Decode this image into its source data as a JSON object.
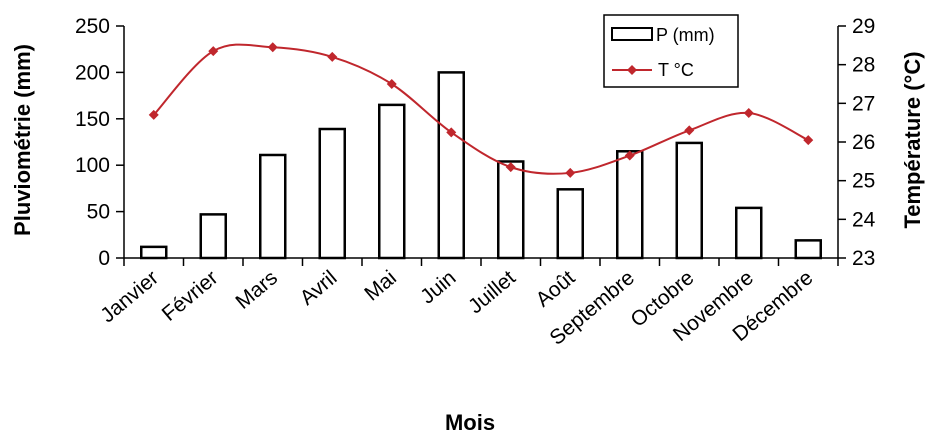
{
  "chart_data": {
    "type": "bar+line",
    "categories": [
      "Janvier",
      "Février",
      "Mars",
      "Avril",
      "Mai",
      "Juin",
      "Juillet",
      "Août",
      "Septembre",
      "Octobre",
      "Novembre",
      "Décembre"
    ],
    "series": [
      {
        "name": "P (mm)",
        "type": "bar",
        "axis": "left",
        "values": [
          12,
          47,
          111,
          139,
          165,
          200,
          104,
          74,
          115,
          124,
          54,
          19
        ]
      },
      {
        "name": "T °C",
        "type": "line",
        "axis": "right",
        "values": [
          26.7,
          28.35,
          28.45,
          28.2,
          27.5,
          26.25,
          25.35,
          25.2,
          25.65,
          26.3,
          26.75,
          26.05
        ]
      }
    ],
    "xlabel": "Mois",
    "ylabel": "Pluviométrie (mm)",
    "y2label": "Température (°C)",
    "ylim": [
      0,
      250
    ],
    "y2lim": [
      23,
      29
    ],
    "yticks": [
      "0",
      "50",
      "100",
      "150",
      "200",
      "250"
    ],
    "y2ticks": [
      "23",
      "24",
      "25",
      "26",
      "27",
      "28",
      "29"
    ],
    "legend_position": "top-right",
    "grid": false,
    "colors": {
      "bar_fill": "#ffffff",
      "bar_stroke": "#000000",
      "line": "#c0272d"
    }
  }
}
